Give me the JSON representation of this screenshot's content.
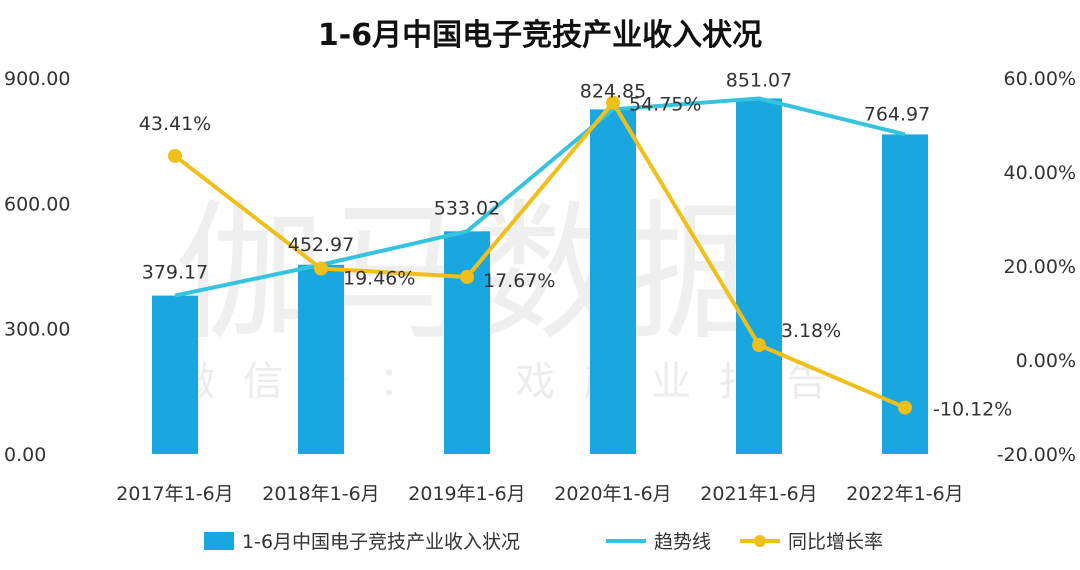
{
  "chart_data": {
    "type": "bar+line",
    "title": "1-6月中国电子竞技产业收入状况",
    "categories": [
      "2017年1-6月",
      "2018年1-6月",
      "2019年1-6月",
      "2020年1-6月",
      "2021年1-6月",
      "2022年1-6月"
    ],
    "y_left": {
      "min": 0,
      "max": 900,
      "ticks": [
        "0.00",
        "300.00",
        "600.00",
        "900.00"
      ]
    },
    "y_right": {
      "min": -20,
      "max": 60,
      "ticks": [
        "-20.00%",
        "0.00%",
        "20.00%",
        "40.00%",
        "60.00%"
      ]
    },
    "series": [
      {
        "name": "1-6月中国电子竞技产业收入状况",
        "kind": "bar",
        "axis": "left",
        "color": "#1aa7e0",
        "values": [
          379.17,
          452.97,
          533.02,
          824.85,
          851.07,
          764.97
        ],
        "labels": [
          "379.17",
          "452.97",
          "533.02",
          "824.85",
          "851.07",
          "764.97"
        ]
      },
      {
        "name": "趋势线",
        "kind": "line",
        "axis": "left",
        "color": "#35c3dd",
        "values": [
          379.17,
          452.97,
          533.02,
          824.85,
          851.07,
          764.97
        ]
      },
      {
        "name": "同比增长率",
        "kind": "line-marker",
        "axis": "right",
        "color": "#f0bf1a",
        "values": [
          43.41,
          19.46,
          17.67,
          54.75,
          3.18,
          -10.12
        ],
        "labels": [
          "43.41%",
          "19.46%",
          "17.67%",
          "54.75%",
          "3.18%",
          "-10.12%"
        ]
      }
    ],
    "legend_position": "bottom",
    "grid": false
  },
  "watermark": {
    "main": "伽马数据",
    "sub": "微信号：游戏产业报告"
  }
}
